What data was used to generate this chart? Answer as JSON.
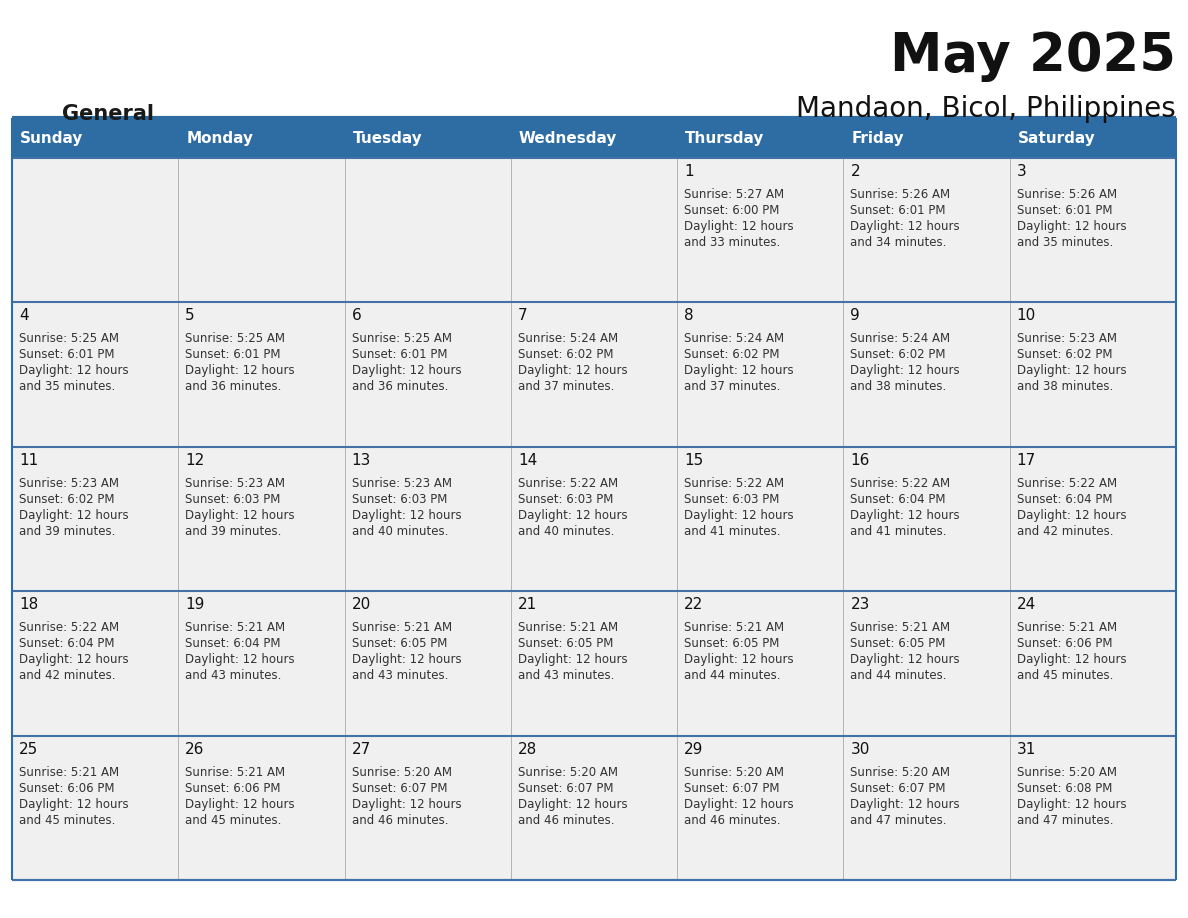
{
  "title": "May 2025",
  "subtitle": "Mandaon, Bicol, Philippines",
  "header_bg_color": "#2E6DA4",
  "header_text_color": "#FFFFFF",
  "cell_bg_color": "#F0F0F0",
  "border_color": "#2E6DA4",
  "row_border_color": "#4472A8",
  "day_names": [
    "Sunday",
    "Monday",
    "Tuesday",
    "Wednesday",
    "Thursday",
    "Friday",
    "Saturday"
  ],
  "title_color": "#111111",
  "subtitle_color": "#111111",
  "text_color": "#333333",
  "day_number_color": "#111111",
  "logo_black": "#1a1a1a",
  "logo_blue": "#2E6DA4",
  "logo_triangle_color": "#2E6DA4",
  "fig_width": 11.88,
  "fig_height": 9.18,
  "dpi": 100,
  "days_data": [
    {
      "day": 1,
      "col": 4,
      "row": 0,
      "sunrise": "5:27 AM",
      "sunset": "6:00 PM",
      "daylight": "12 hours and 33 minutes."
    },
    {
      "day": 2,
      "col": 5,
      "row": 0,
      "sunrise": "5:26 AM",
      "sunset": "6:01 PM",
      "daylight": "12 hours and 34 minutes."
    },
    {
      "day": 3,
      "col": 6,
      "row": 0,
      "sunrise": "5:26 AM",
      "sunset": "6:01 PM",
      "daylight": "12 hours and 35 minutes."
    },
    {
      "day": 4,
      "col": 0,
      "row": 1,
      "sunrise": "5:25 AM",
      "sunset": "6:01 PM",
      "daylight": "12 hours and 35 minutes."
    },
    {
      "day": 5,
      "col": 1,
      "row": 1,
      "sunrise": "5:25 AM",
      "sunset": "6:01 PM",
      "daylight": "12 hours and 36 minutes."
    },
    {
      "day": 6,
      "col": 2,
      "row": 1,
      "sunrise": "5:25 AM",
      "sunset": "6:01 PM",
      "daylight": "12 hours and 36 minutes."
    },
    {
      "day": 7,
      "col": 3,
      "row": 1,
      "sunrise": "5:24 AM",
      "sunset": "6:02 PM",
      "daylight": "12 hours and 37 minutes."
    },
    {
      "day": 8,
      "col": 4,
      "row": 1,
      "sunrise": "5:24 AM",
      "sunset": "6:02 PM",
      "daylight": "12 hours and 37 minutes."
    },
    {
      "day": 9,
      "col": 5,
      "row": 1,
      "sunrise": "5:24 AM",
      "sunset": "6:02 PM",
      "daylight": "12 hours and 38 minutes."
    },
    {
      "day": 10,
      "col": 6,
      "row": 1,
      "sunrise": "5:23 AM",
      "sunset": "6:02 PM",
      "daylight": "12 hours and 38 minutes."
    },
    {
      "day": 11,
      "col": 0,
      "row": 2,
      "sunrise": "5:23 AM",
      "sunset": "6:02 PM",
      "daylight": "12 hours and 39 minutes."
    },
    {
      "day": 12,
      "col": 1,
      "row": 2,
      "sunrise": "5:23 AM",
      "sunset": "6:03 PM",
      "daylight": "12 hours and 39 minutes."
    },
    {
      "day": 13,
      "col": 2,
      "row": 2,
      "sunrise": "5:23 AM",
      "sunset": "6:03 PM",
      "daylight": "12 hours and 40 minutes."
    },
    {
      "day": 14,
      "col": 3,
      "row": 2,
      "sunrise": "5:22 AM",
      "sunset": "6:03 PM",
      "daylight": "12 hours and 40 minutes."
    },
    {
      "day": 15,
      "col": 4,
      "row": 2,
      "sunrise": "5:22 AM",
      "sunset": "6:03 PM",
      "daylight": "12 hours and 41 minutes."
    },
    {
      "day": 16,
      "col": 5,
      "row": 2,
      "sunrise": "5:22 AM",
      "sunset": "6:04 PM",
      "daylight": "12 hours and 41 minutes."
    },
    {
      "day": 17,
      "col": 6,
      "row": 2,
      "sunrise": "5:22 AM",
      "sunset": "6:04 PM",
      "daylight": "12 hours and 42 minutes."
    },
    {
      "day": 18,
      "col": 0,
      "row": 3,
      "sunrise": "5:22 AM",
      "sunset": "6:04 PM",
      "daylight": "12 hours and 42 minutes."
    },
    {
      "day": 19,
      "col": 1,
      "row": 3,
      "sunrise": "5:21 AM",
      "sunset": "6:04 PM",
      "daylight": "12 hours and 43 minutes."
    },
    {
      "day": 20,
      "col": 2,
      "row": 3,
      "sunrise": "5:21 AM",
      "sunset": "6:05 PM",
      "daylight": "12 hours and 43 minutes."
    },
    {
      "day": 21,
      "col": 3,
      "row": 3,
      "sunrise": "5:21 AM",
      "sunset": "6:05 PM",
      "daylight": "12 hours and 43 minutes."
    },
    {
      "day": 22,
      "col": 4,
      "row": 3,
      "sunrise": "5:21 AM",
      "sunset": "6:05 PM",
      "daylight": "12 hours and 44 minutes."
    },
    {
      "day": 23,
      "col": 5,
      "row": 3,
      "sunrise": "5:21 AM",
      "sunset": "6:05 PM",
      "daylight": "12 hours and 44 minutes."
    },
    {
      "day": 24,
      "col": 6,
      "row": 3,
      "sunrise": "5:21 AM",
      "sunset": "6:06 PM",
      "daylight": "12 hours and 45 minutes."
    },
    {
      "day": 25,
      "col": 0,
      "row": 4,
      "sunrise": "5:21 AM",
      "sunset": "6:06 PM",
      "daylight": "12 hours and 45 minutes."
    },
    {
      "day": 26,
      "col": 1,
      "row": 4,
      "sunrise": "5:21 AM",
      "sunset": "6:06 PM",
      "daylight": "12 hours and 45 minutes."
    },
    {
      "day": 27,
      "col": 2,
      "row": 4,
      "sunrise": "5:20 AM",
      "sunset": "6:07 PM",
      "daylight": "12 hours and 46 minutes."
    },
    {
      "day": 28,
      "col": 3,
      "row": 4,
      "sunrise": "5:20 AM",
      "sunset": "6:07 PM",
      "daylight": "12 hours and 46 minutes."
    },
    {
      "day": 29,
      "col": 4,
      "row": 4,
      "sunrise": "5:20 AM",
      "sunset": "6:07 PM",
      "daylight": "12 hours and 46 minutes."
    },
    {
      "day": 30,
      "col": 5,
      "row": 4,
      "sunrise": "5:20 AM",
      "sunset": "6:07 PM",
      "daylight": "12 hours and 47 minutes."
    },
    {
      "day": 31,
      "col": 6,
      "row": 4,
      "sunrise": "5:20 AM",
      "sunset": "6:08 PM",
      "daylight": "12 hours and 47 minutes."
    }
  ]
}
